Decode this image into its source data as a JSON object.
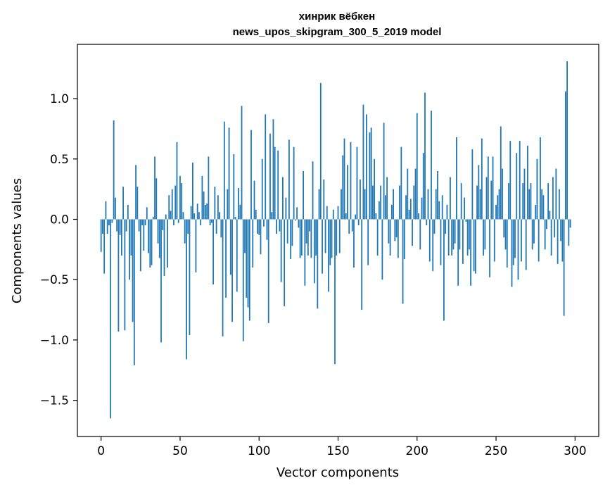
{
  "chart_data": {
    "type": "bar",
    "title_lines": [
      "хинрик вёбкен",
      "news_upos_skipgram_300_5_2019 model"
    ],
    "xlabel": "Vector components",
    "ylabel": "Components values",
    "xlim": [
      -15,
      315
    ],
    "ylim": [
      -1.8,
      1.45
    ],
    "xticks": [
      0,
      50,
      100,
      150,
      200,
      250,
      300
    ],
    "xtick_labels": [
      "0",
      "50",
      "100",
      "150",
      "200",
      "250",
      "300"
    ],
    "yticks": [
      -1.5,
      -1.0,
      -0.5,
      0.0,
      0.5,
      1.0
    ],
    "ytick_labels": [
      "−1.5",
      "−1.0",
      "−0.5",
      "0.0",
      "0.5",
      "1.0"
    ],
    "bar_color": "#1f77b4",
    "values": [
      -0.27,
      -0.12,
      -0.45,
      0.15,
      -0.12,
      -0.05,
      -1.65,
      -0.03,
      0.82,
      0.18,
      -0.1,
      -0.93,
      -0.13,
      -0.3,
      0.27,
      -0.92,
      -0.1,
      0.12,
      -0.5,
      -0.3,
      -0.85,
      -1.21,
      0.45,
      0.27,
      -0.1,
      -0.43,
      -0.05,
      -0.26,
      -0.05,
      0.1,
      -0.28,
      -0.4,
      -0.38,
      0.02,
      0.52,
      0.34,
      -0.2,
      -0.32,
      -1.02,
      -0.09,
      -0.47,
      0.04,
      -0.4,
      0.2,
      0.07,
      0.25,
      -0.05,
      0.28,
      0.64,
      -0.03,
      0.36,
      0.3,
      0.06,
      -0.2,
      -1.16,
      -0.12,
      -0.96,
      0.11,
      0.47,
      0.05,
      -0.44,
      0.13,
      0.06,
      -0.05,
      0.36,
      0.23,
      0.12,
      0.13,
      0.52,
      -0.05,
      -0.03,
      -0.54,
      0.27,
      -0.12,
      0.2,
      0.06,
      -0.15,
      -0.97,
      0.81,
      -0.65,
      0.25,
      0.76,
      -0.46,
      -0.85,
      0.54,
      0.02,
      -0.6,
      0.26,
      0.12,
      0.94,
      -1.01,
      -0.28,
      -0.65,
      -0.73,
      -0.84,
      0.74,
      -0.4,
      0.32,
      0.08,
      -0.12,
      -0.13,
      -0.29,
      0.5,
      -0.06,
      0.87,
      -0.17,
      -0.86,
      0.71,
      0.06,
      0.83,
      0.6,
      -0.12,
      0.57,
      -0.1,
      -0.52,
      0.35,
      -0.72,
      0.18,
      -0.2,
      0.66,
      -0.33,
      -0.22,
      0.6,
      -0.01,
      0.1,
      -0.07,
      -0.32,
      -0.3,
      0.4,
      -0.55,
      -0.2,
      -0.3,
      -0.1,
      -0.32,
      0.48,
      -0.53,
      -0.3,
      -0.74,
      0.25,
      1.13,
      -0.45,
      0.33,
      -0.28,
      0.11,
      -0.6,
      -0.38,
      -0.32,
      0.08,
      -1.2,
      -0.3,
      0.11,
      -0.28,
      0.25,
      0.53,
      0.67,
      0.05,
      0.45,
      -0.12,
      0.64,
      -0.1,
      -0.4,
      0.04,
      0.6,
      -0.05,
      0.33,
      -0.75,
      0.95,
      0.25,
      0.87,
      -0.38,
      0.72,
      0.76,
      0.28,
      0.5,
      0.05,
      -0.3,
      0.15,
      0.28,
      -0.5,
      0.8,
      0.2,
      0.35,
      -0.2,
      -0.3,
      0.12,
      0.25,
      -0.18,
      -0.15,
      -0.32,
      0.28,
      0.6,
      -0.7,
      -0.33,
      0.2,
      0.42,
      0.08,
      0.17,
      -0.22,
      0.28,
      0.42,
      0.88,
      0.05,
      -0.25,
      0.18,
      0.55,
      1.05,
      -0.05,
      0.25,
      -0.35,
      0.9,
      -0.43,
      -0.12,
      0.25,
      0.4,
      0.15,
      -0.38,
      0.2,
      -0.84,
      -0.12,
      0.12,
      -0.3,
      0.35,
      -0.3,
      -0.25,
      -0.2,
      0.68,
      -0.55,
      -0.25,
      0.3,
      -0.37,
      0.18,
      -0.02,
      -0.3,
      -0.25,
      -0.55,
      0.58,
      -0.43,
      -0.45,
      0.28,
      0.45,
      0.25,
      0.67,
      -0.3,
      -0.25,
      0.35,
      0.52,
      -0.48,
      0.32,
      0.52,
      -0.35,
      0.12,
      0.2,
      0.25,
      0.77,
      0.42,
      -0.15,
      -0.25,
      -0.4,
      0.3,
      0.65,
      -0.56,
      -0.38,
      -0.32,
      0.55,
      -0.5,
      0.65,
      -0.35,
      0.3,
      0.42,
      -0.42,
      0.61,
      0.25,
      0.3,
      -0.25,
      -0.2,
      0.12,
      0.5,
      -0.35,
      0.68,
      0.25,
      0.2,
      -0.25,
      -0.08,
      0.3,
      0.07,
      -0.3,
      0.35,
      -0.15,
      0.42,
      -0.37,
      0.25,
      -0.18,
      -0.35,
      -0.8,
      1.06,
      1.31,
      -0.22,
      -0.07,
      0.0,
      0.0
    ]
  }
}
